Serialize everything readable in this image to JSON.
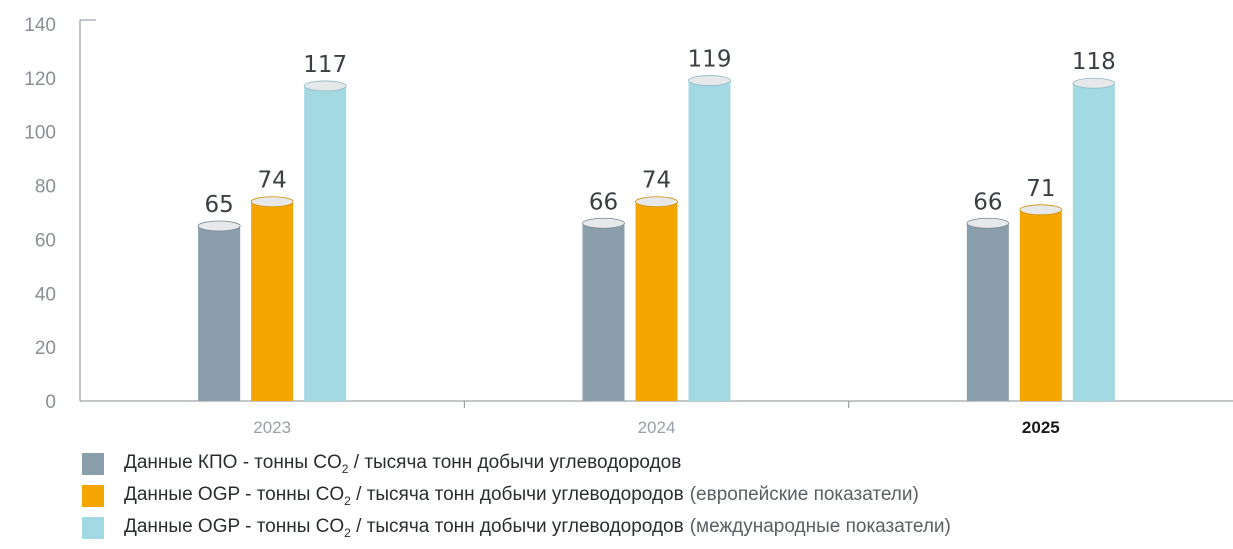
{
  "chart_data": {
    "type": "bar",
    "categories": [
      "2023",
      "2024",
      "2025"
    ],
    "highlight_category": "2025",
    "ylim": [
      0,
      140
    ],
    "yticks": [
      0,
      20,
      40,
      60,
      80,
      100,
      120,
      140
    ],
    "series": [
      {
        "name": "Данные КПО - тонны CO2 / тысяча тонн добычи углеводородов",
        "label_main": "Данные КПО - тонны CO",
        "label_sub": "2",
        "label_rest": " / тысяча тонн добычи углеводородов",
        "label_extra": "",
        "color": "#8a9fab",
        "values": [
          65,
          66,
          66
        ]
      },
      {
        "name": "Данные OGP - тонны CO2 / тысяча тонн добычи углеводородов (европейские показатели)",
        "label_main": "Данные OGP - тонны CO",
        "label_sub": "2",
        "label_rest": " / тысяча тонн добычи углеводородов",
        "label_extra": "(европейские показатели)",
        "color": "#f5a500",
        "values": [
          74,
          74,
          71
        ]
      },
      {
        "name": "Данные OGP - тонны CO2 / тысяча тонн добычи углеводородов (международные показатели)",
        "label_main": "Данные OGP - тонны CO",
        "label_sub": "2",
        "label_rest": " / тысяча тонн добычи углеводородов",
        "label_extra": "(международные показатели)",
        "color": "#a3d9e3",
        "values": [
          117,
          119,
          118
        ]
      }
    ]
  }
}
